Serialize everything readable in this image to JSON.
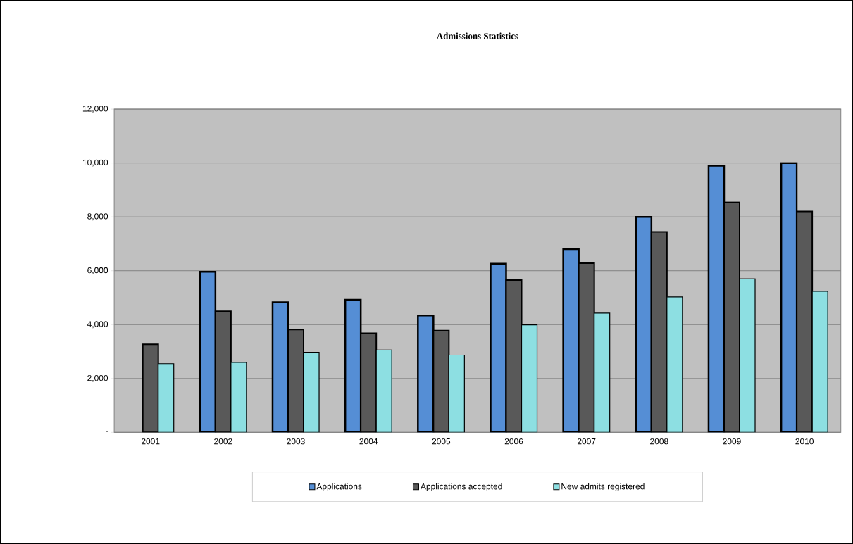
{
  "chart_data": {
    "type": "bar",
    "title": "Admissions Statistics",
    "categories": [
      "2001",
      "2002",
      "2003",
      "2004",
      "2005",
      "2006",
      "2007",
      "2008",
      "2009",
      "2010"
    ],
    "series": [
      {
        "name": "Applications",
        "color": "#558ed5",
        "values": [
          null,
          5960,
          4830,
          4920,
          4340,
          6260,
          6800,
          8000,
          9900,
          10000
        ]
      },
      {
        "name": "Applications accepted",
        "color": "#595959",
        "values": [
          3270,
          4500,
          3820,
          3680,
          3780,
          5650,
          6280,
          7440,
          8540,
          8200
        ]
      },
      {
        "name": "New admits registered",
        "color": "#8ddfe2",
        "values": [
          2550,
          2600,
          2970,
          3060,
          2870,
          3990,
          4430,
          5030,
          5700,
          5240
        ]
      }
    ],
    "ylim": [
      0,
      12000
    ],
    "yticks": [
      {
        "value": 0,
        "label": "-"
      },
      {
        "value": 2000,
        "label": "2,000"
      },
      {
        "value": 4000,
        "label": "4,000"
      },
      {
        "value": 6000,
        "label": "6,000"
      },
      {
        "value": 8000,
        "label": "8,000"
      },
      {
        "value": 10000,
        "label": "10,000"
      },
      {
        "value": 12000,
        "label": "12,000"
      }
    ],
    "grid": "y",
    "legend": "bottom"
  }
}
